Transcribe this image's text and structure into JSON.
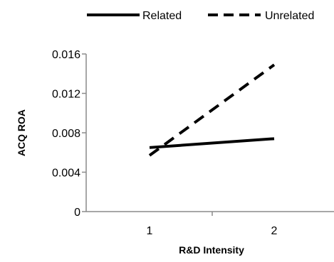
{
  "chart_data": {
    "type": "line",
    "title": "",
    "xlabel": "R&D Intensity",
    "ylabel": "ACQ ROA",
    "x": [
      1,
      2
    ],
    "xticks": [
      "1",
      "2"
    ],
    "ylim": [
      0,
      0.016
    ],
    "yticks": [
      "0",
      "0.004",
      "0.008",
      "0.012",
      "0.016"
    ],
    "grid": false,
    "legend_position": "top",
    "series": [
      {
        "name": "Related",
        "values": [
          0.0065,
          0.0074
        ],
        "style": "solid",
        "color": "#000000"
      },
      {
        "name": "Unrelated",
        "values": [
          0.0057,
          0.0149
        ],
        "style": "dashed",
        "color": "#000000"
      }
    ]
  }
}
